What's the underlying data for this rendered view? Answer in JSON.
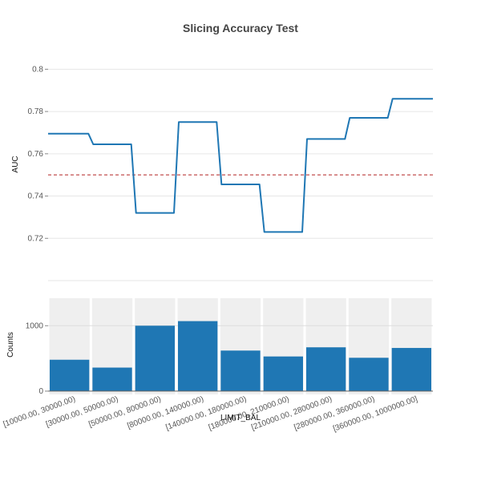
{
  "chart_data": [
    {
      "type": "line",
      "title": "Slicing Accuracy Test",
      "ylabel": "AUC",
      "ylim": [
        0.7,
        0.81
      ],
      "yticks": [
        "0.72",
        "0.74",
        "0.76",
        "0.78",
        "0.8"
      ],
      "grid": true,
      "series": [
        {
          "values": [
            0.7695,
            0.7645,
            0.732,
            0.775,
            0.7455,
            0.723,
            0.767,
            0.777,
            0.786
          ],
          "color": "#1f77b4"
        }
      ],
      "reference_line": {
        "value": 0.75,
        "color": "#b22222",
        "style": "dashed"
      }
    },
    {
      "type": "bar",
      "ylabel": "Counts",
      "xlabel": "LIMIT_BAL",
      "yticks": [
        "0",
        "1000"
      ],
      "categories": [
        "[10000.00, 30000.00)",
        "[30000.00, 50000.00)",
        "[50000.00, 80000.00)",
        "[80000.00, 140000.00)",
        "[140000.00, 180000.00)",
        "[180000.00, 210000.00)",
        "[210000.00, 280000.00)",
        "[280000.00, 360000.00)",
        "[360000.00, 1000000.00]"
      ],
      "values": [
        480,
        360,
        1000,
        1070,
        620,
        530,
        670,
        510,
        660
      ],
      "ylim": [
        -50,
        1420
      ],
      "color": "#1f77b4"
    }
  ]
}
